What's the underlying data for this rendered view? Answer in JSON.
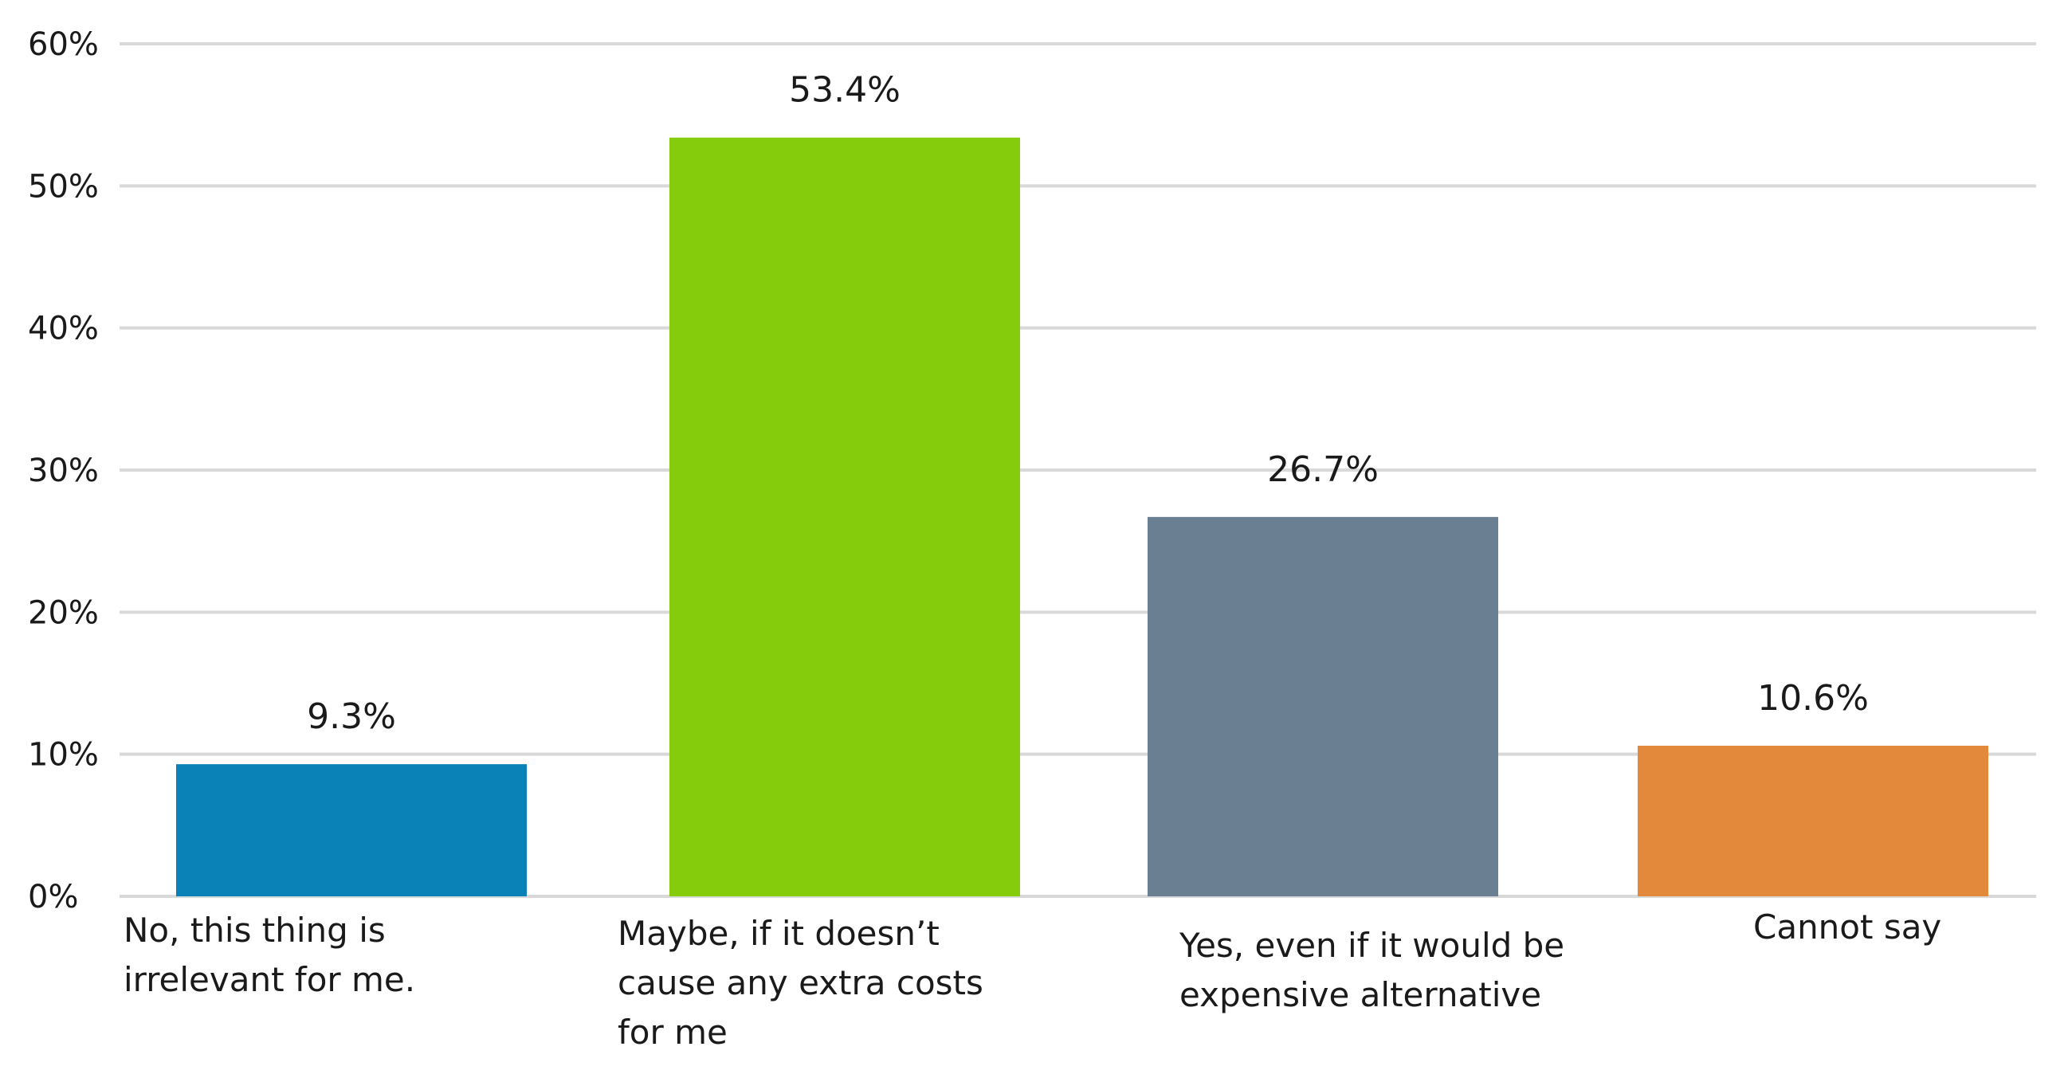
{
  "chart_data": {
    "type": "bar",
    "title": "",
    "xlabel": "",
    "ylabel": "",
    "categories": [
      [
        "No, this thing is",
        "irrelevant for me."
      ],
      [
        "Maybe, if it doesn’t",
        "cause any extra costs",
        "for me"
      ],
      [
        "Yes, even if it would be",
        "expensive alternative"
      ],
      [
        "Cannot say"
      ]
    ],
    "values": [
      9.3,
      53.4,
      26.7,
      10.6
    ],
    "value_labels": [
      "9.3%",
      "53.4%",
      "26.7%",
      "10.6%"
    ],
    "colors": [
      "#0a82b7",
      "#84cc0c",
      "#6a8092",
      "#e2893c"
    ],
    "ylim": [
      0,
      60
    ],
    "yticks": [
      0,
      10,
      20,
      30,
      40,
      50,
      60
    ],
    "ytick_labels": [
      "0%",
      "10%",
      "20%",
      "30%",
      "40%",
      "50%",
      "60%"
    ],
    "grid": true,
    "gridline_color": "#d9d9d9",
    "legend": "none"
  }
}
